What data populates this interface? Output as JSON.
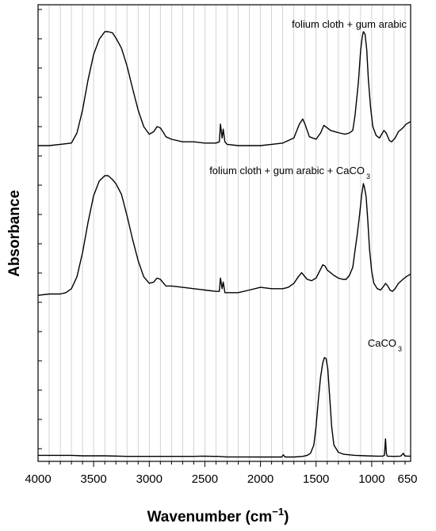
{
  "chart_data": {
    "type": "line",
    "xlabel": "Wavenumber (cm",
    "xlabel_sup": "−1",
    "xlabel_close": ")",
    "ylabel": "Absorbance",
    "xlim": [
      4000,
      650
    ],
    "x_reversed": true,
    "y_ticklabels": false,
    "grid": true,
    "x_ticks": [
      {
        "value": 4000,
        "label": "4000"
      },
      {
        "value": 3500,
        "label": "3500"
      },
      {
        "value": 3000,
        "label": "3000"
      },
      {
        "value": 2500,
        "label": "2500"
      },
      {
        "value": 2000,
        "label": "2000"
      },
      {
        "value": 1500,
        "label": "1500"
      },
      {
        "value": 1000,
        "label": "1000"
      },
      {
        "value": 650,
        "label": "650"
      }
    ],
    "annotations": [
      {
        "text": "folium cloth + gum arabic"
      },
      {
        "text": "folium cloth + gum arabic + CaCO",
        "sub": "3"
      },
      {
        "text": "CaCO",
        "sub": "3"
      }
    ],
    "series": [
      {
        "label_index": 0,
        "color": "#000000",
        "points": [
          [
            4000,
            0.1
          ],
          [
            3900,
            0.1
          ],
          [
            3800,
            0.11
          ],
          [
            3700,
            0.12
          ],
          [
            3650,
            0.2
          ],
          [
            3600,
            0.38
          ],
          [
            3550,
            0.62
          ],
          [
            3500,
            0.82
          ],
          [
            3450,
            0.94
          ],
          [
            3400,
            1.0
          ],
          [
            3370,
            1.0
          ],
          [
            3330,
            0.99
          ],
          [
            3300,
            0.95
          ],
          [
            3250,
            0.87
          ],
          [
            3200,
            0.73
          ],
          [
            3150,
            0.55
          ],
          [
            3100,
            0.38
          ],
          [
            3050,
            0.25
          ],
          [
            3000,
            0.19
          ],
          [
            2960,
            0.21
          ],
          [
            2930,
            0.25
          ],
          [
            2900,
            0.24
          ],
          [
            2870,
            0.2
          ],
          [
            2850,
            0.17
          ],
          [
            2800,
            0.15
          ],
          [
            2700,
            0.13
          ],
          [
            2600,
            0.13
          ],
          [
            2500,
            0.12
          ],
          [
            2400,
            0.12
          ],
          [
            2370,
            0.13
          ],
          [
            2360,
            0.27
          ],
          [
            2345,
            0.16
          ],
          [
            2335,
            0.23
          ],
          [
            2320,
            0.13
          ],
          [
            2300,
            0.11
          ],
          [
            2200,
            0.1
          ],
          [
            2000,
            0.1
          ],
          [
            1900,
            0.11
          ],
          [
            1800,
            0.12
          ],
          [
            1700,
            0.16
          ],
          [
            1650,
            0.27
          ],
          [
            1620,
            0.31
          ],
          [
            1600,
            0.27
          ],
          [
            1560,
            0.17
          ],
          [
            1500,
            0.15
          ],
          [
            1460,
            0.2
          ],
          [
            1430,
            0.26
          ],
          [
            1400,
            0.24
          ],
          [
            1370,
            0.22
          ],
          [
            1330,
            0.21
          ],
          [
            1290,
            0.2
          ],
          [
            1240,
            0.19
          ],
          [
            1200,
            0.2
          ],
          [
            1170,
            0.22
          ],
          [
            1150,
            0.34
          ],
          [
            1120,
            0.6
          ],
          [
            1100,
            0.85
          ],
          [
            1085,
            0.96
          ],
          [
            1075,
            1.0
          ],
          [
            1060,
            0.98
          ],
          [
            1045,
            0.86
          ],
          [
            1030,
            0.62
          ],
          [
            1010,
            0.4
          ],
          [
            990,
            0.25
          ],
          [
            960,
            0.18
          ],
          [
            930,
            0.16
          ],
          [
            910,
            0.19
          ],
          [
            890,
            0.22
          ],
          [
            870,
            0.2
          ],
          [
            840,
            0.14
          ],
          [
            820,
            0.13
          ],
          [
            790,
            0.16
          ],
          [
            760,
            0.21
          ],
          [
            720,
            0.24
          ],
          [
            690,
            0.27
          ],
          [
            650,
            0.29
          ]
        ]
      },
      {
        "label_index": 1,
        "color": "#000000",
        "points": [
          [
            4000,
            0.1
          ],
          [
            3900,
            0.11
          ],
          [
            3800,
            0.11
          ],
          [
            3750,
            0.12
          ],
          [
            3700,
            0.15
          ],
          [
            3650,
            0.24
          ],
          [
            3600,
            0.42
          ],
          [
            3550,
            0.65
          ],
          [
            3500,
            0.85
          ],
          [
            3450,
            0.96
          ],
          [
            3400,
            1.0
          ],
          [
            3370,
            1.0
          ],
          [
            3330,
            0.97
          ],
          [
            3300,
            0.94
          ],
          [
            3250,
            0.86
          ],
          [
            3200,
            0.7
          ],
          [
            3150,
            0.52
          ],
          [
            3100,
            0.36
          ],
          [
            3050,
            0.24
          ],
          [
            3000,
            0.19
          ],
          [
            2960,
            0.2
          ],
          [
            2930,
            0.23
          ],
          [
            2900,
            0.22
          ],
          [
            2870,
            0.19
          ],
          [
            2850,
            0.17
          ],
          [
            2800,
            0.17
          ],
          [
            2700,
            0.16
          ],
          [
            2600,
            0.15
          ],
          [
            2500,
            0.14
          ],
          [
            2400,
            0.13
          ],
          [
            2370,
            0.13
          ],
          [
            2360,
            0.23
          ],
          [
            2345,
            0.15
          ],
          [
            2335,
            0.2
          ],
          [
            2320,
            0.12
          ],
          [
            2300,
            0.12
          ],
          [
            2200,
            0.12
          ],
          [
            2100,
            0.14
          ],
          [
            2000,
            0.16
          ],
          [
            1900,
            0.15
          ],
          [
            1800,
            0.15
          ],
          [
            1750,
            0.16
          ],
          [
            1700,
            0.19
          ],
          [
            1660,
            0.24
          ],
          [
            1630,
            0.27
          ],
          [
            1610,
            0.25
          ],
          [
            1580,
            0.22
          ],
          [
            1540,
            0.21
          ],
          [
            1500,
            0.23
          ],
          [
            1470,
            0.28
          ],
          [
            1440,
            0.33
          ],
          [
            1420,
            0.32
          ],
          [
            1400,
            0.29
          ],
          [
            1370,
            0.27
          ],
          [
            1340,
            0.25
          ],
          [
            1300,
            0.23
          ],
          [
            1260,
            0.22
          ],
          [
            1230,
            0.22
          ],
          [
            1200,
            0.25
          ],
          [
            1170,
            0.31
          ],
          [
            1150,
            0.44
          ],
          [
            1130,
            0.56
          ],
          [
            1110,
            0.7
          ],
          [
            1090,
            0.86
          ],
          [
            1075,
            0.94
          ],
          [
            1065,
            0.91
          ],
          [
            1050,
            0.84
          ],
          [
            1035,
            0.66
          ],
          [
            1020,
            0.45
          ],
          [
            1000,
            0.28
          ],
          [
            980,
            0.19
          ],
          [
            950,
            0.15
          ],
          [
            920,
            0.14
          ],
          [
            900,
            0.16
          ],
          [
            875,
            0.19
          ],
          [
            855,
            0.17
          ],
          [
            835,
            0.14
          ],
          [
            815,
            0.13
          ],
          [
            790,
            0.15
          ],
          [
            760,
            0.19
          ],
          [
            720,
            0.22
          ],
          [
            690,
            0.24
          ],
          [
            650,
            0.26
          ]
        ]
      },
      {
        "label_index": 2,
        "color": "#000000",
        "points": [
          [
            4000,
            0.02
          ],
          [
            3900,
            0.02
          ],
          [
            3800,
            0.02
          ],
          [
            3700,
            0.02
          ],
          [
            3600,
            0.015
          ],
          [
            3400,
            0.015
          ],
          [
            3200,
            0.01
          ],
          [
            3000,
            0.01
          ],
          [
            2800,
            0.01
          ],
          [
            2600,
            0.01
          ],
          [
            2500,
            0.012
          ],
          [
            2420,
            0.01
          ],
          [
            2380,
            0.01
          ],
          [
            2300,
            0.005
          ],
          [
            2200,
            0.005
          ],
          [
            2000,
            0.004
          ],
          [
            1850,
            0.004
          ],
          [
            1810,
            0.004
          ],
          [
            1795,
            0.025
          ],
          [
            1780,
            0.004
          ],
          [
            1700,
            0.004
          ],
          [
            1620,
            0.01
          ],
          [
            1580,
            0.02
          ],
          [
            1550,
            0.04
          ],
          [
            1520,
            0.12
          ],
          [
            1500,
            0.3
          ],
          [
            1480,
            0.56
          ],
          [
            1460,
            0.78
          ],
          [
            1440,
            0.92
          ],
          [
            1425,
            0.97
          ],
          [
            1410,
            0.96
          ],
          [
            1395,
            0.86
          ],
          [
            1380,
            0.62
          ],
          [
            1360,
            0.3
          ],
          [
            1340,
            0.12
          ],
          [
            1300,
            0.05
          ],
          [
            1250,
            0.03
          ],
          [
            1150,
            0.02
          ],
          [
            1050,
            0.015
          ],
          [
            950,
            0.012
          ],
          [
            900,
            0.012
          ],
          [
            885,
            0.02
          ],
          [
            876,
            0.18
          ],
          [
            868,
            0.04
          ],
          [
            860,
            0.012
          ],
          [
            800,
            0.01
          ],
          [
            740,
            0.012
          ],
          [
            715,
            0.04
          ],
          [
            705,
            0.015
          ],
          [
            680,
            0.012
          ],
          [
            650,
            0.012
          ]
        ]
      }
    ]
  }
}
